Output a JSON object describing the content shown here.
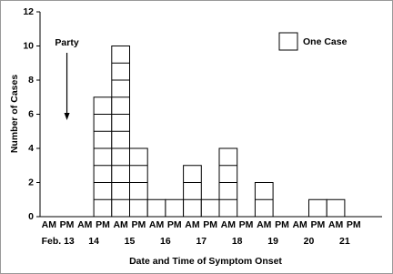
{
  "chart_data": {
    "type": "bar",
    "categories": [
      "AM",
      "PM",
      "AM",
      "PM",
      "AM",
      "PM",
      "AM",
      "PM",
      "AM",
      "PM",
      "AM",
      "PM",
      "AM",
      "PM",
      "AM",
      "PM",
      "AM",
      "PM"
    ],
    "days": [
      "Feb. 13",
      "14",
      "15",
      "16",
      "17",
      "18",
      "19",
      "20",
      "21"
    ],
    "values": [
      0,
      0,
      0,
      7,
      10,
      4,
      1,
      1,
      3,
      1,
      4,
      0,
      2,
      0,
      0,
      1,
      1,
      0
    ],
    "color": "#ffffff",
    "ylim": [
      0,
      12
    ],
    "yticks": [
      0,
      2,
      4,
      6,
      8,
      10,
      12
    ],
    "y_label": "Number of Cases",
    "x_label": "Date and Time of Symptom Onset",
    "legend": "One Case",
    "annotation": "Party",
    "annotation_index": 1
  }
}
